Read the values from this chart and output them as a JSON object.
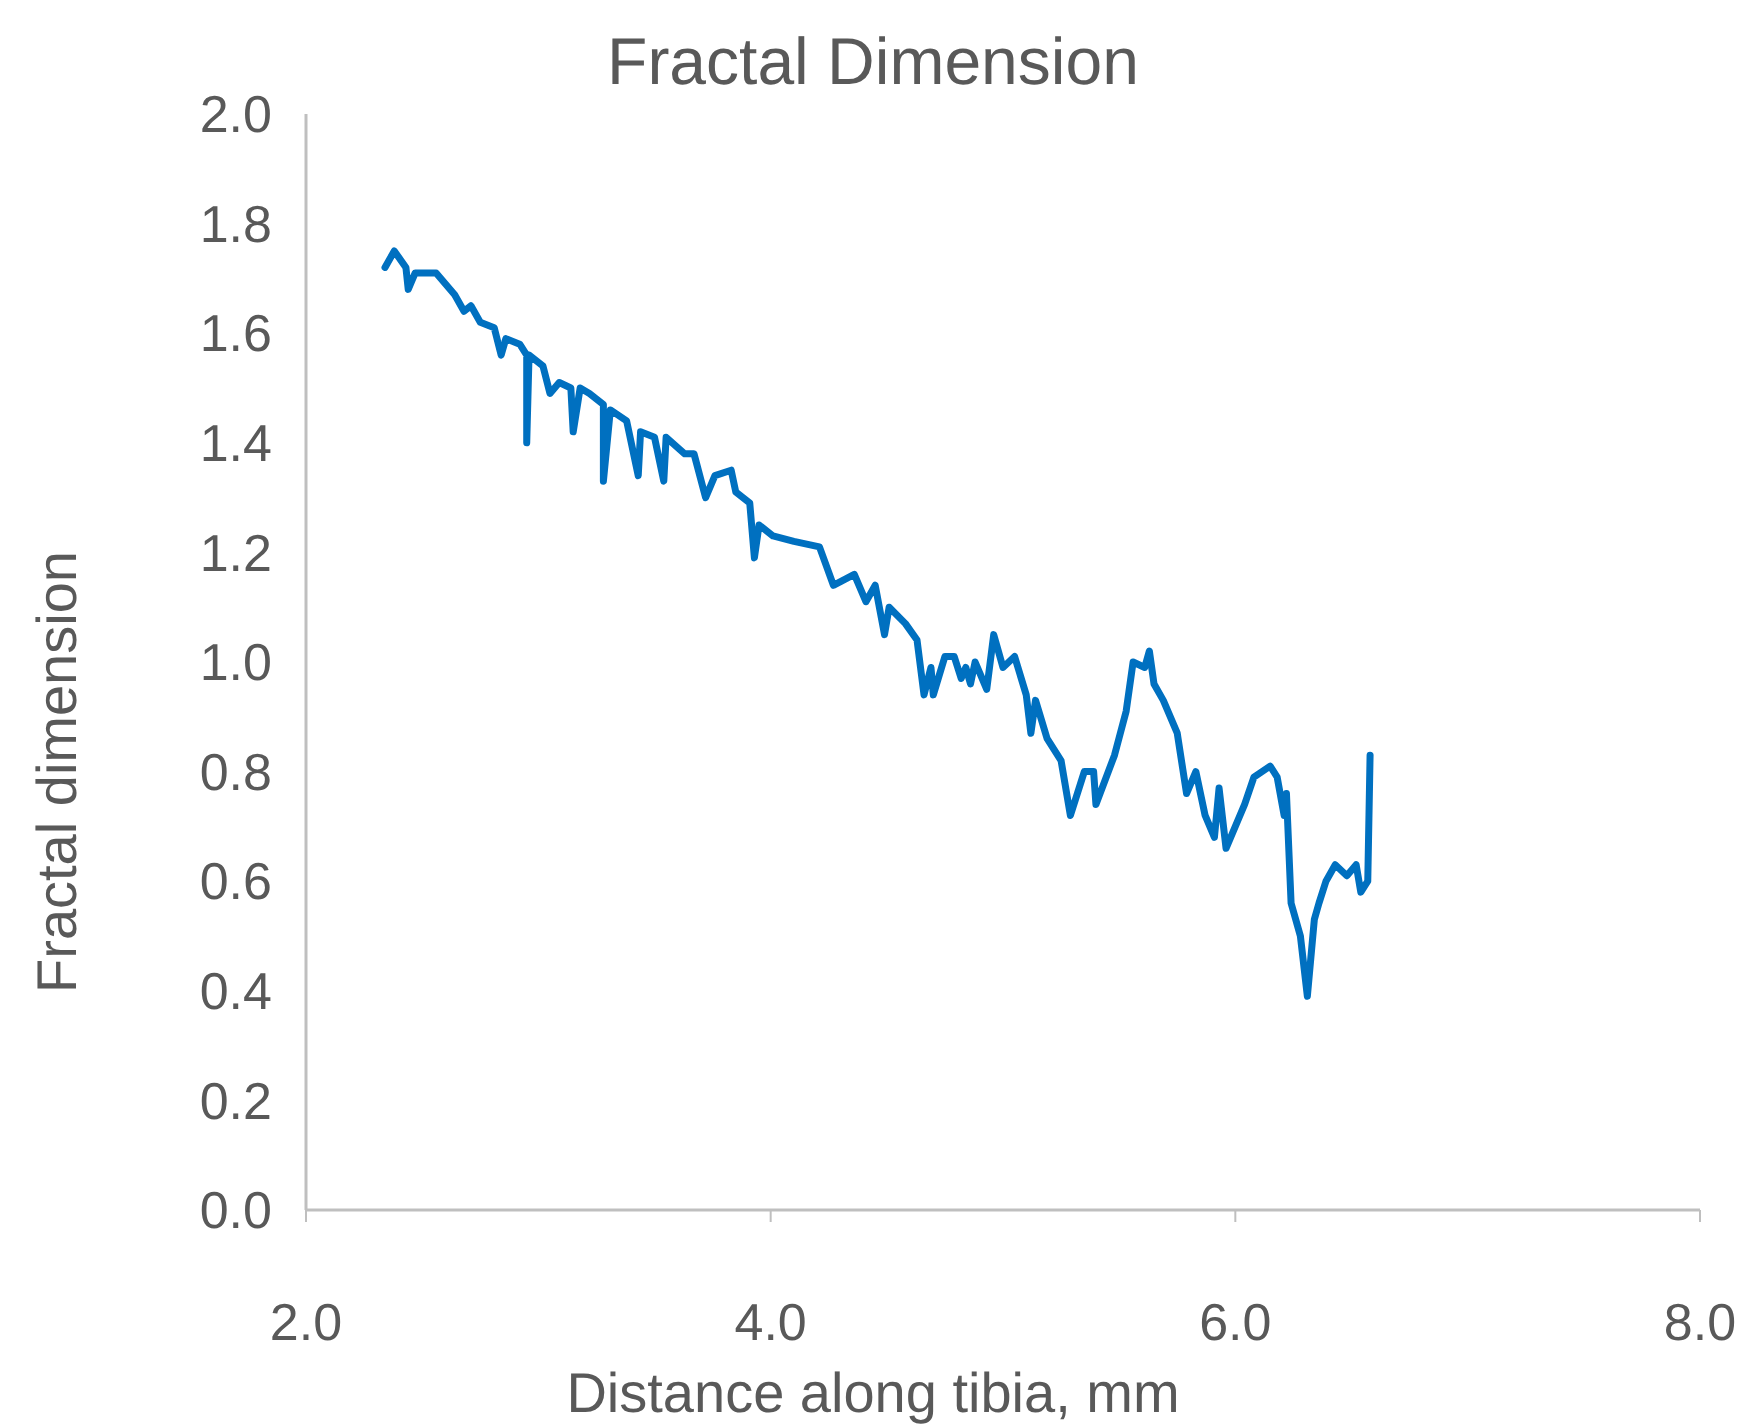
{
  "chart_data": {
    "type": "line",
    "title": "Fractal Dimension",
    "xlabel": "Distance along tibia, mm",
    "ylabel": "Fractal dimension",
    "xlim": [
      2,
      8
    ],
    "xticks": [
      {
        "value": 2,
        "label": "2.0"
      },
      {
        "value": 4,
        "label": "4.0"
      },
      {
        "value": 6,
        "label": "6.0"
      },
      {
        "value": 8,
        "label": "8.0"
      }
    ],
    "ylim": [
      0,
      2
    ],
    "yticks": [
      {
        "value": 0,
        "label": "0.0"
      },
      {
        "value": 0.2,
        "label": "0.2"
      },
      {
        "value": 0.4,
        "label": "0.4"
      },
      {
        "value": 0.6,
        "label": "0.6"
      },
      {
        "value": 0.8,
        "label": "0.8"
      },
      {
        "value": 1,
        "label": "1.0"
      },
      {
        "value": 1.2,
        "label": "1.2"
      },
      {
        "value": 1.4,
        "label": "1.4"
      },
      {
        "value": 1.6,
        "label": "1.6"
      },
      {
        "value": 1.8,
        "label": "1.8"
      },
      {
        "value": 2,
        "label": "2.0"
      }
    ],
    "grid": false,
    "marker": "none",
    "line_style": "solid",
    "series": [
      {
        "color": "#0070c0",
        "x": [
          2.34,
          2.38,
          2.43,
          2.44,
          2.47,
          2.56,
          2.64,
          2.68,
          2.71,
          2.75,
          2.81,
          2.84,
          2.86,
          2.92,
          2.95,
          2.95,
          2.96,
          3.02,
          3.05,
          3.09,
          3.14,
          3.15,
          3.18,
          3.22,
          3.28,
          3.28,
          3.31,
          3.38,
          3.43,
          3.44,
          3.5,
          3.54,
          3.55,
          3.63,
          3.67,
          3.72,
          3.76,
          3.83,
          3.85,
          3.91,
          3.93,
          3.95,
          4.01,
          4.1,
          4.21,
          4.27,
          4.36,
          4.41,
          4.45,
          4.49,
          4.51,
          4.58,
          4.63,
          4.66,
          4.69,
          4.7,
          4.75,
          4.79,
          4.82,
          4.84,
          4.86,
          4.88,
          4.93,
          4.96,
          5.0,
          5.05,
          5.1,
          5.12,
          5.14,
          5.19,
          5.25,
          5.29,
          5.35,
          5.39,
          5.4,
          5.48,
          5.53,
          5.56,
          5.61,
          5.63,
          5.65,
          5.69,
          5.75,
          5.79,
          5.83,
          5.87,
          5.91,
          5.93,
          5.96,
          6.04,
          6.08,
          6.15,
          6.18,
          6.21,
          6.22,
          6.24,
          6.28,
          6.31,
          6.34,
          6.36,
          6.39,
          6.43,
          6.48,
          6.52,
          6.54,
          6.57,
          6.58
        ],
        "values": [
          1.72,
          1.75,
          1.72,
          1.68,
          1.71,
          1.71,
          1.67,
          1.64,
          1.65,
          1.62,
          1.61,
          1.56,
          1.59,
          1.58,
          1.56,
          1.4,
          1.56,
          1.54,
          1.49,
          1.51,
          1.5,
          1.42,
          1.5,
          1.49,
          1.47,
          1.33,
          1.46,
          1.44,
          1.34,
          1.42,
          1.41,
          1.33,
          1.41,
          1.38,
          1.38,
          1.3,
          1.34,
          1.35,
          1.31,
          1.29,
          1.19,
          1.25,
          1.23,
          1.22,
          1.21,
          1.14,
          1.16,
          1.11,
          1.14,
          1.05,
          1.1,
          1.07,
          1.04,
          0.94,
          0.99,
          0.94,
          1.01,
          1.01,
          0.97,
          0.99,
          0.96,
          1.0,
          0.95,
          1.05,
          0.99,
          1.01,
          0.94,
          0.87,
          0.93,
          0.86,
          0.82,
          0.72,
          0.8,
          0.8,
          0.74,
          0.83,
          0.91,
          1.0,
          0.99,
          1.02,
          0.96,
          0.93,
          0.87,
          0.76,
          0.8,
          0.72,
          0.68,
          0.77,
          0.66,
          0.74,
          0.79,
          0.81,
          0.79,
          0.72,
          0.76,
          0.56,
          0.5,
          0.39,
          0.53,
          0.56,
          0.6,
          0.63,
          0.61,
          0.63,
          0.58,
          0.6,
          0.83
        ]
      }
    ]
  }
}
